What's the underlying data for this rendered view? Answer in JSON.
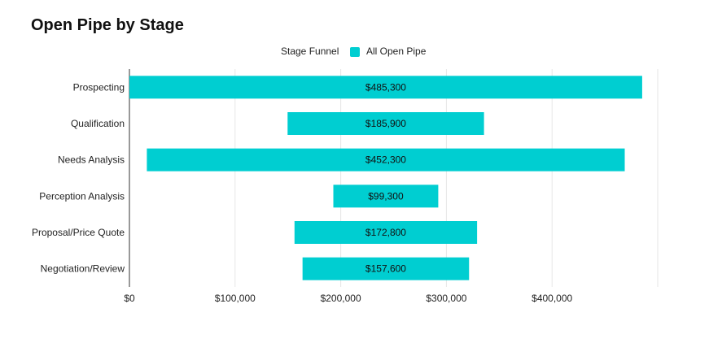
{
  "chart_data": {
    "type": "bar",
    "orientation": "horizontal",
    "layout": "funnel",
    "title": "Open Pipe by Stage",
    "legend": {
      "title": "Stage Funnel",
      "placement": "top-center"
    },
    "categories": [
      "Prospecting",
      "Qualification",
      "Needs Analysis",
      "Perception Analysis",
      "Proposal/Price Quote",
      "Negotiation/Review"
    ],
    "series": [
      {
        "name": "All Open Pipe",
        "color": "#00CED1",
        "values": [
          485300,
          185900,
          452300,
          99300,
          172800,
          157600
        ],
        "data_labels": [
          "$485,300",
          "$185,900",
          "$452,300",
          "$99,300",
          "$172,800",
          "$157,600"
        ]
      }
    ],
    "x_ticks": [
      0,
      100000,
      200000,
      300000,
      400000
    ],
    "x_tick_labels": [
      "$0",
      "$100,000",
      "$200,000",
      "$300,000",
      "$400,000"
    ],
    "xlim": [
      0,
      500000
    ],
    "grid": true
  }
}
